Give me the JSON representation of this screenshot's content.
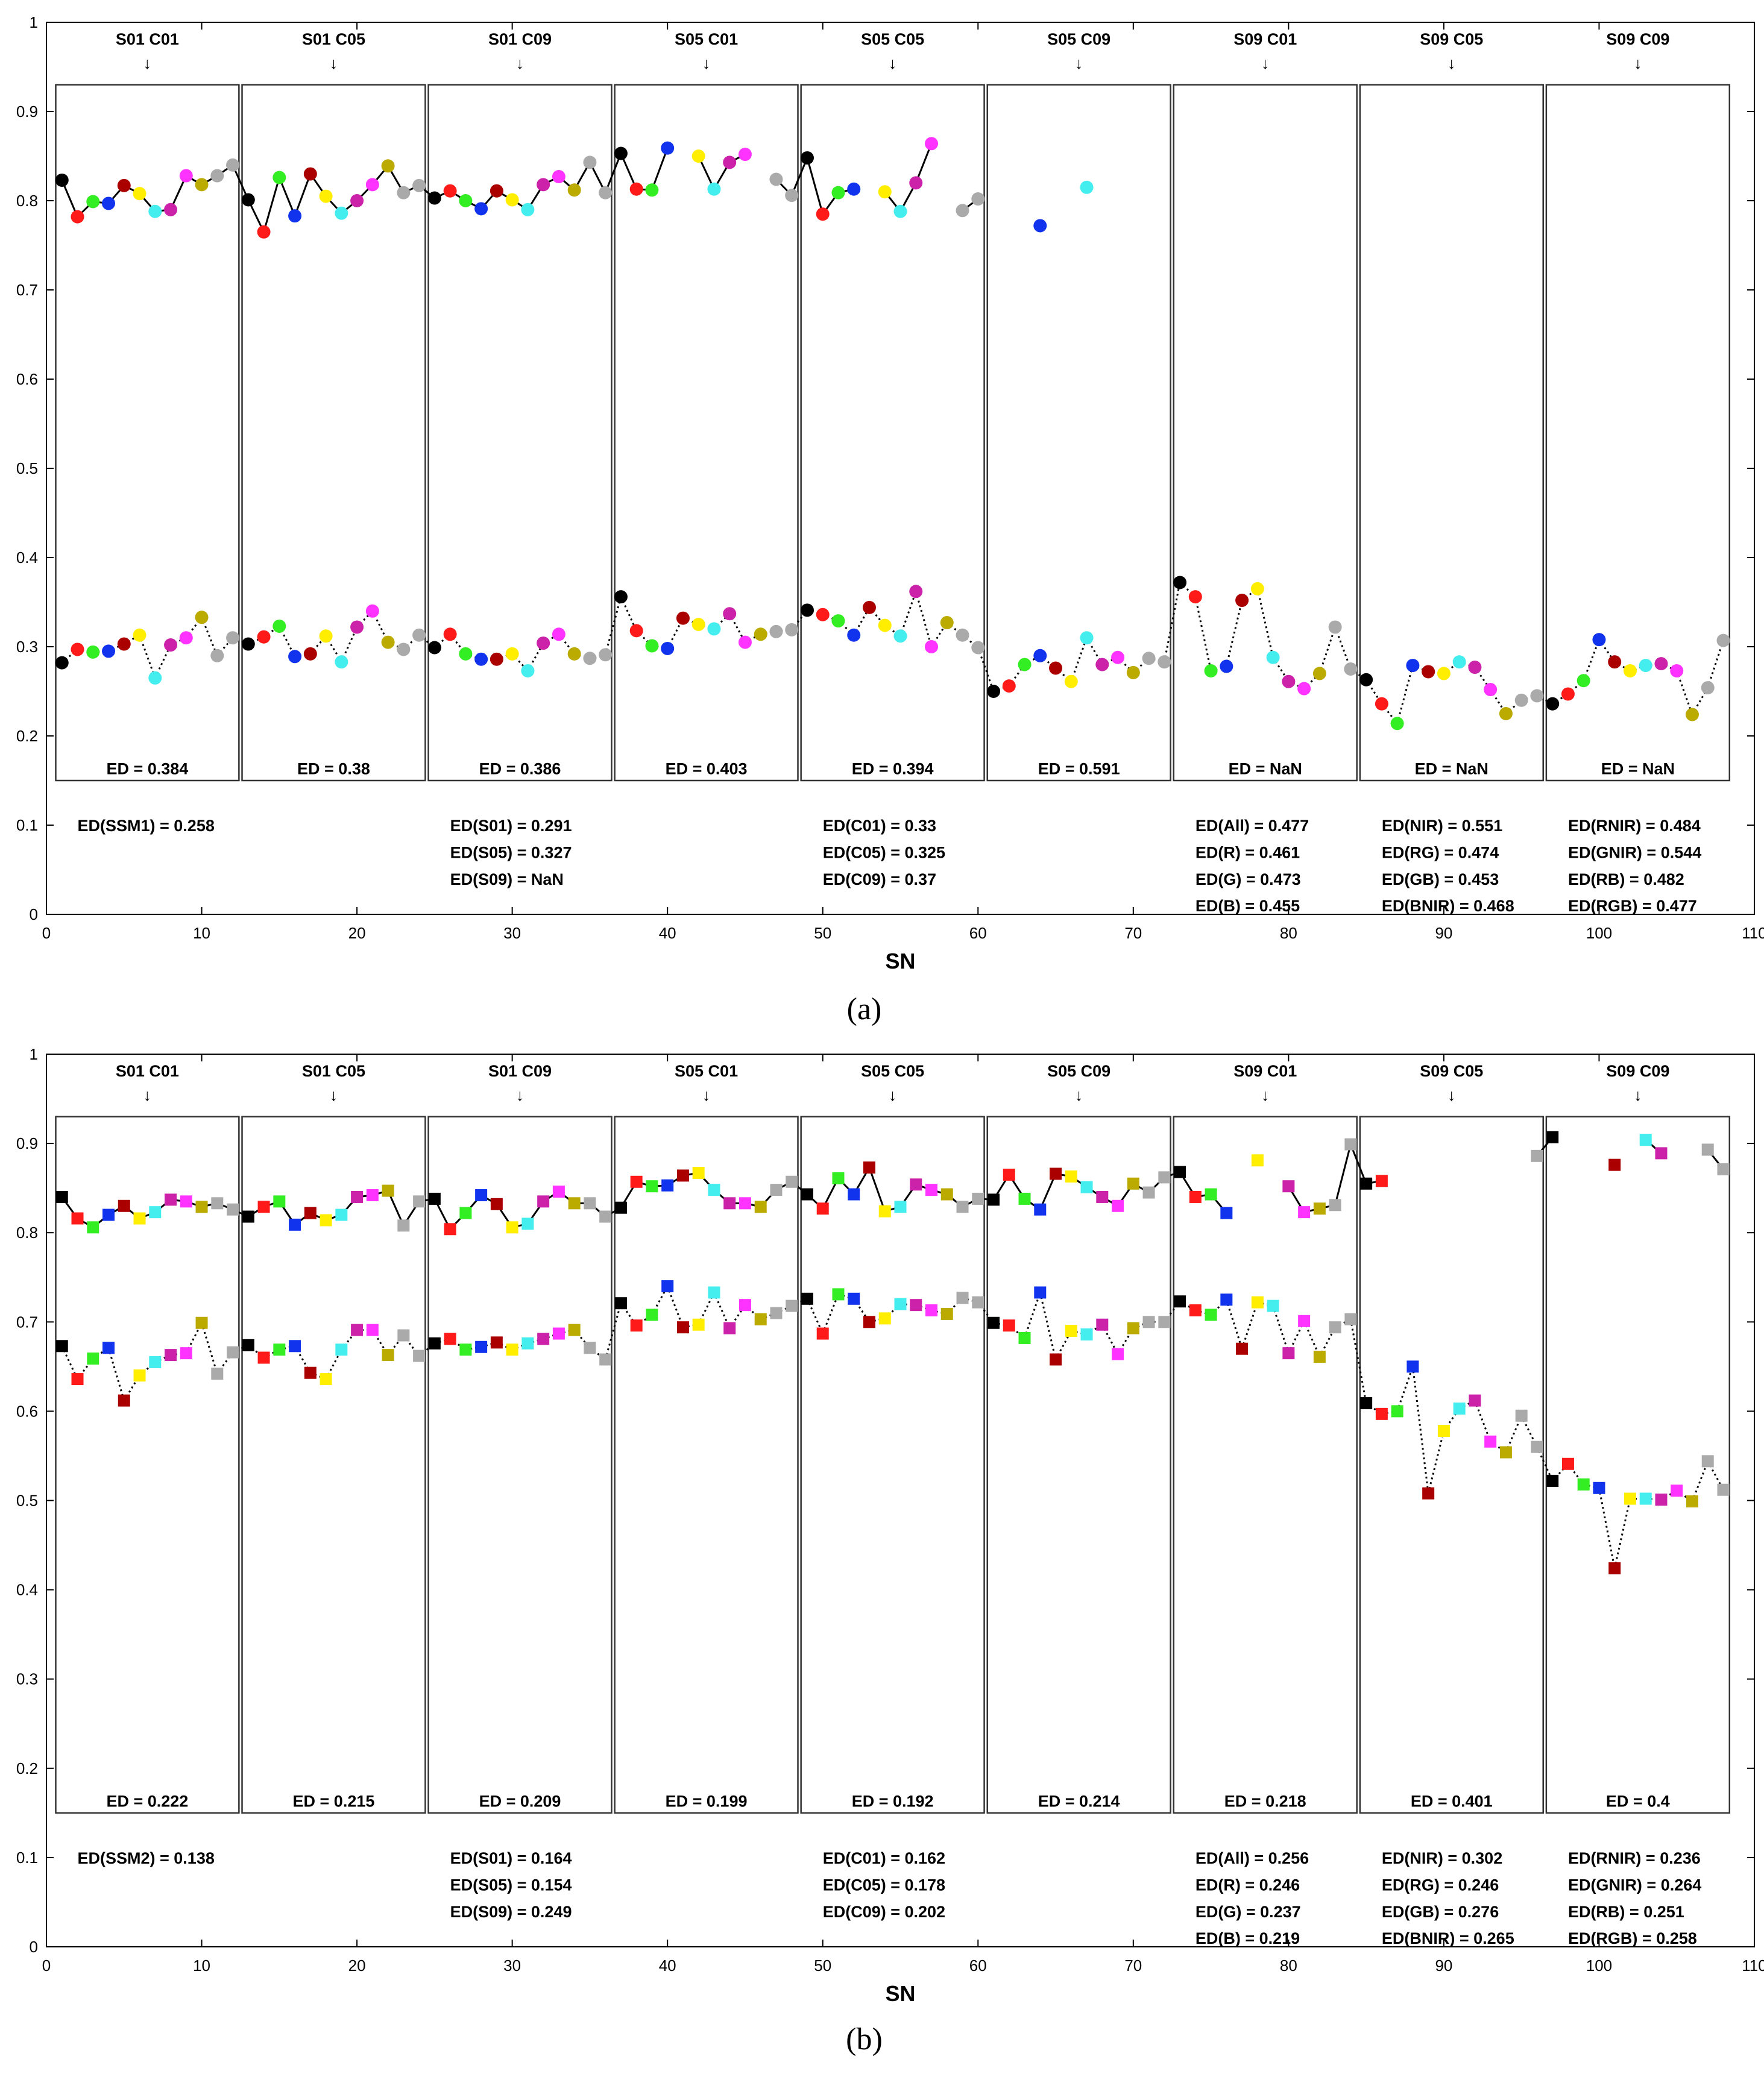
{
  "colors": [
    "#000000",
    "#ff1a1a",
    "#33ee22",
    "#1133ee",
    "#aa0000",
    "#ffee00",
    "#44eeee",
    "#cc22aa",
    "#ff33ff",
    "#bbaa00",
    "#aaaaaa"
  ],
  "chart_data": [
    {
      "type": "scatter",
      "panel_label": "(a)",
      "panel_letter": "a",
      "marker": "circle",
      "xlabel": "SN",
      "ylabel": "",
      "xlim": [
        0,
        110
      ],
      "ylim": [
        0,
        1
      ],
      "xticks": [
        "0",
        "10",
        "20",
        "30",
        "40",
        "50",
        "60",
        "70",
        "80",
        "90",
        "100",
        "110"
      ],
      "yticks": [
        "0",
        "0.1",
        "0.2",
        "0.3",
        "0.4",
        "0.5",
        "0.6",
        "0.7",
        "0.8",
        "0.9",
        "1"
      ],
      "groups": [
        {
          "label": "S01 C01",
          "arrow": "↓",
          "ed": "ED = 0.384"
        },
        {
          "label": "S01 C05",
          "arrow": "↓",
          "ed": "ED = 0.38"
        },
        {
          "label": "S01 C09",
          "arrow": "↓",
          "ed": "ED = 0.386"
        },
        {
          "label": "S05 C01",
          "arrow": "↓",
          "ed": "ED = 0.403"
        },
        {
          "label": "S05 C05",
          "arrow": "↓",
          "ed": "ED = 0.394"
        },
        {
          "label": "S05 C09",
          "arrow": "↓",
          "ed": "ED = 0.591"
        },
        {
          "label": "S09 C01",
          "arrow": "↓",
          "ed": "ED = NaN"
        },
        {
          "label": "S09 C05",
          "arrow": "↓",
          "ed": "ED = NaN"
        },
        {
          "label": "S09 C09",
          "arrow": "↓",
          "ed": "ED = NaN"
        }
      ],
      "ed_columns": [
        {
          "x": 2,
          "lines": [
            "ED(SSM1) = 0.258"
          ]
        },
        {
          "x": 26,
          "lines": [
            "ED(S01) = 0.291",
            "ED(S05) = 0.327",
            "ED(S09) = NaN"
          ]
        },
        {
          "x": 50,
          "lines": [
            "ED(C01) = 0.33",
            "ED(C05) = 0.325",
            "ED(C09) = 0.37"
          ]
        },
        {
          "x": 74,
          "lines": [
            "ED(All) = 0.477",
            "ED(R) = 0.461",
            "ED(G) = 0.473",
            "ED(B) = 0.455"
          ]
        },
        {
          "x": 86,
          "lines": [
            "ED(NIR) = 0.551",
            "ED(RG) = 0.474",
            "ED(GB) = 0.453",
            "ED(BNIR) = 0.468"
          ]
        },
        {
          "x": 98,
          "lines": [
            "ED(RNIR) = 0.484",
            "ED(GNIR) = 0.544",
            "ED(RB) = 0.482",
            "ED(RGB) = 0.477"
          ]
        }
      ],
      "series": [
        {
          "name": "upper",
          "line": "solid",
          "values": [
            0.823,
            0.782,
            0.799,
            0.797,
            0.817,
            0.808,
            0.788,
            0.79,
            0.828,
            0.818,
            0.828,
            0.84,
            0.801,
            0.765,
            0.826,
            0.783,
            0.83,
            0.805,
            0.786,
            0.8,
            0.818,
            0.839,
            0.809,
            0.817,
            0.803,
            0.811,
            0.8,
            0.791,
            0.811,
            0.801,
            0.79,
            0.818,
            0.827,
            0.812,
            0.843,
            0.809,
            0.853,
            0.813,
            0.812,
            0.859,
            null,
            0.85,
            0.813,
            0.843,
            0.852,
            null,
            0.824,
            0.806,
            0.848,
            0.785,
            0.809,
            0.813,
            null,
            0.81,
            0.788,
            0.82,
            0.864,
            null,
            0.789,
            0.802,
            null,
            null,
            null,
            0.772,
            null,
            null,
            0.815,
            null,
            null,
            null,
            null,
            null,
            null,
            null,
            null,
            null,
            null,
            null,
            null,
            null,
            null,
            null,
            null,
            null,
            null,
            null,
            null,
            null,
            null,
            null,
            null,
            null,
            null,
            null,
            null,
            null,
            null,
            null,
            null,
            null,
            null,
            null,
            null,
            null,
            null,
            null,
            null,
            null
          ]
        },
        {
          "name": "lower",
          "line": "dotted",
          "values": [
            0.282,
            0.297,
            0.294,
            0.295,
            0.303,
            0.313,
            0.265,
            0.302,
            0.31,
            0.333,
            0.29,
            0.31,
            0.303,
            0.311,
            0.323,
            0.289,
            0.292,
            0.312,
            0.283,
            0.322,
            0.34,
            0.305,
            0.297,
            0.313,
            0.299,
            0.314,
            0.292,
            0.286,
            0.286,
            0.292,
            0.273,
            0.304,
            0.314,
            0.292,
            0.287,
            0.291,
            0.356,
            0.318,
            0.301,
            0.298,
            0.332,
            0.325,
            0.32,
            0.337,
            0.305,
            0.314,
            0.317,
            0.319,
            0.341,
            0.336,
            0.329,
            0.313,
            0.344,
            0.324,
            0.312,
            0.362,
            0.3,
            0.327,
            0.313,
            0.299,
            0.25,
            0.256,
            0.28,
            0.29,
            0.276,
            0.261,
            0.31,
            0.28,
            0.288,
            0.271,
            0.287,
            0.283,
            0.372,
            0.356,
            0.273,
            0.278,
            0.352,
            0.365,
            0.288,
            0.261,
            0.253,
            0.27,
            0.322,
            0.275,
            0.263,
            0.236,
            0.214,
            0.279,
            0.272,
            0.27,
            0.283,
            0.277,
            0.252,
            0.225,
            0.24,
            0.245,
            0.236,
            0.247,
            0.262,
            0.308,
            0.283,
            0.273,
            0.279,
            0.281,
            0.273,
            0.224,
            0.254,
            0.307
          ]
        }
      ]
    },
    {
      "type": "scatter",
      "panel_label": "(b)",
      "panel_letter": "b",
      "marker": "square",
      "xlabel": "SN",
      "ylabel": "",
      "xlim": [
        0,
        110
      ],
      "ylim": [
        0,
        1
      ],
      "xticks": [
        "0",
        "10",
        "20",
        "30",
        "40",
        "50",
        "60",
        "70",
        "80",
        "90",
        "100",
        "110"
      ],
      "yticks": [
        "0",
        "0.1",
        "0.2",
        "0.3",
        "0.4",
        "0.5",
        "0.6",
        "0.7",
        "0.8",
        "0.9",
        "1"
      ],
      "groups": [
        {
          "label": "S01 C01",
          "arrow": "↓",
          "ed": "ED = 0.222"
        },
        {
          "label": "S01 C05",
          "arrow": "↓",
          "ed": "ED = 0.215"
        },
        {
          "label": "S01 C09",
          "arrow": "↓",
          "ed": "ED = 0.209"
        },
        {
          "label": "S05 C01",
          "arrow": "↓",
          "ed": "ED = 0.199"
        },
        {
          "label": "S05 C05",
          "arrow": "↓",
          "ed": "ED = 0.192"
        },
        {
          "label": "S05 C09",
          "arrow": "↓",
          "ed": "ED = 0.214"
        },
        {
          "label": "S09 C01",
          "arrow": "↓",
          "ed": "ED = 0.218"
        },
        {
          "label": "S09 C05",
          "arrow": "↓",
          "ed": "ED = 0.401"
        },
        {
          "label": "S09 C09",
          "arrow": "↓",
          "ed": "ED = 0.4"
        }
      ],
      "ed_columns": [
        {
          "x": 2,
          "lines": [
            "ED(SSM2) = 0.138"
          ]
        },
        {
          "x": 26,
          "lines": [
            "ED(S01) = 0.164",
            "ED(S05) = 0.154",
            "ED(S09) = 0.249"
          ]
        },
        {
          "x": 50,
          "lines": [
            "ED(C01) = 0.162",
            "ED(C05) = 0.178",
            "ED(C09) = 0.202"
          ]
        },
        {
          "x": 74,
          "lines": [
            "ED(All) = 0.256",
            "ED(R) = 0.246",
            "ED(G) = 0.237",
            "ED(B) = 0.219"
          ]
        },
        {
          "x": 86,
          "lines": [
            "ED(NIR) = 0.302",
            "ED(RG) = 0.246",
            "ED(GB) = 0.276",
            "ED(BNIR) = 0.265"
          ]
        },
        {
          "x": 98,
          "lines": [
            "ED(RNIR) = 0.236",
            "ED(GNIR) = 0.264",
            "ED(RB) = 0.251",
            "ED(RGB) = 0.258"
          ]
        }
      ],
      "series": [
        {
          "name": "upper",
          "line": "solid",
          "values": [
            0.84,
            0.816,
            0.806,
            0.82,
            0.83,
            0.816,
            0.823,
            0.837,
            0.835,
            0.829,
            0.833,
            0.826,
            0.818,
            0.829,
            0.835,
            0.809,
            0.822,
            0.814,
            0.82,
            0.84,
            0.842,
            0.847,
            0.808,
            0.835,
            0.838,
            0.804,
            0.822,
            0.842,
            0.832,
            0.806,
            0.81,
            0.835,
            0.846,
            0.833,
            0.833,
            0.818,
            0.828,
            0.857,
            0.852,
            0.853,
            0.864,
            0.867,
            0.848,
            0.833,
            0.833,
            0.829,
            0.848,
            0.857,
            0.843,
            0.827,
            0.861,
            0.843,
            0.873,
            0.824,
            0.829,
            0.854,
            0.848,
            0.843,
            0.829,
            0.838,
            0.837,
            0.865,
            0.838,
            0.826,
            0.866,
            0.863,
            0.851,
            0.84,
            0.83,
            0.855,
            0.845,
            0.862,
            0.868,
            0.84,
            0.843,
            0.822,
            null,
            0.881,
            null,
            0.852,
            0.823,
            0.827,
            0.831,
            0.899,
            0.855,
            0.858,
            null,
            null,
            null,
            null,
            null,
            null,
            null,
            null,
            null,
            0.886,
            0.907,
            null,
            null,
            null,
            0.876,
            null,
            0.904,
            0.889,
            null,
            null,
            0.893,
            0.871
          ]
        },
        {
          "name": "lower",
          "line": "dotted",
          "values": [
            0.673,
            0.636,
            0.659,
            0.671,
            0.612,
            0.64,
            0.655,
            0.663,
            0.665,
            0.699,
            0.642,
            0.666,
            0.674,
            0.66,
            0.669,
            0.673,
            0.643,
            0.636,
            0.669,
            0.691,
            0.691,
            0.663,
            0.685,
            0.662,
            0.676,
            0.681,
            0.669,
            0.672,
            0.677,
            0.669,
            0.676,
            0.681,
            0.687,
            0.691,
            0.671,
            0.658,
            0.721,
            0.696,
            0.708,
            0.74,
            0.694,
            0.697,
            0.733,
            0.693,
            0.719,
            0.703,
            0.71,
            0.718,
            0.726,
            0.687,
            0.731,
            0.726,
            0.7,
            0.704,
            0.72,
            0.719,
            0.713,
            0.709,
            0.727,
            0.722,
            0.699,
            0.696,
            0.682,
            0.733,
            0.658,
            0.69,
            0.686,
            0.697,
            0.664,
            0.693,
            0.7,
            0.7,
            0.723,
            0.713,
            0.708,
            0.725,
            0.67,
            0.722,
            0.718,
            0.665,
            0.701,
            0.661,
            0.694,
            0.703,
            0.609,
            0.597,
            0.6,
            0.65,
            0.508,
            0.578,
            0.603,
            0.612,
            0.566,
            0.554,
            0.595,
            0.56,
            0.522,
            0.541,
            0.518,
            0.514,
            0.424,
            0.502,
            0.502,
            0.501,
            0.511,
            0.499,
            0.544,
            0.512
          ]
        }
      ]
    }
  ]
}
